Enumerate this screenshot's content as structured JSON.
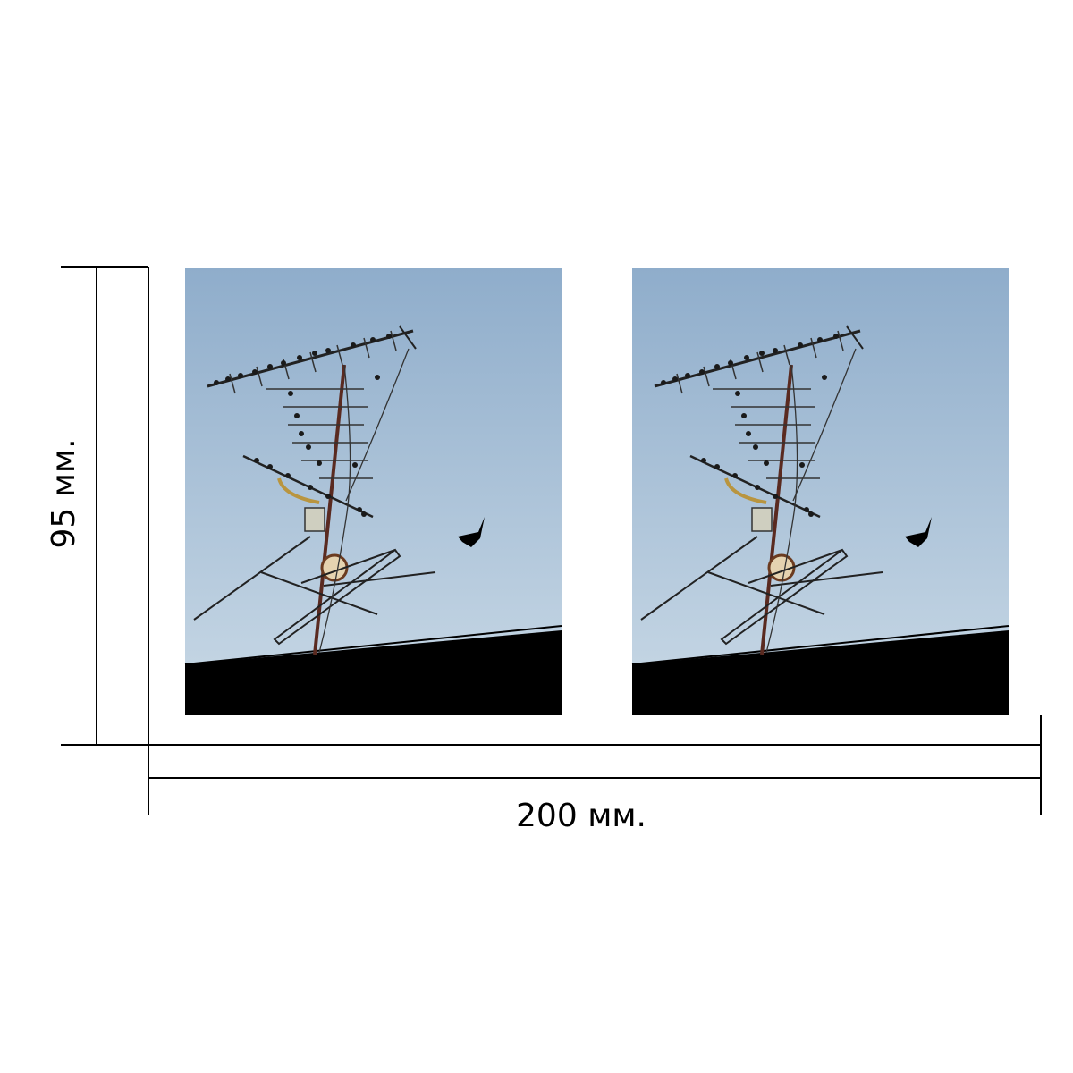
{
  "dimensions": {
    "height_label": "95 мм.",
    "width_label": "200 мм."
  },
  "panels": [
    {
      "subject": "tv-antenna-with-swallows"
    },
    {
      "subject": "tv-antenna-with-swallows"
    }
  ],
  "colors": {
    "sky_top": "#8fadcb",
    "sky_bottom": "#c9d9e6",
    "roof": "#000000",
    "lines": "#000000"
  }
}
